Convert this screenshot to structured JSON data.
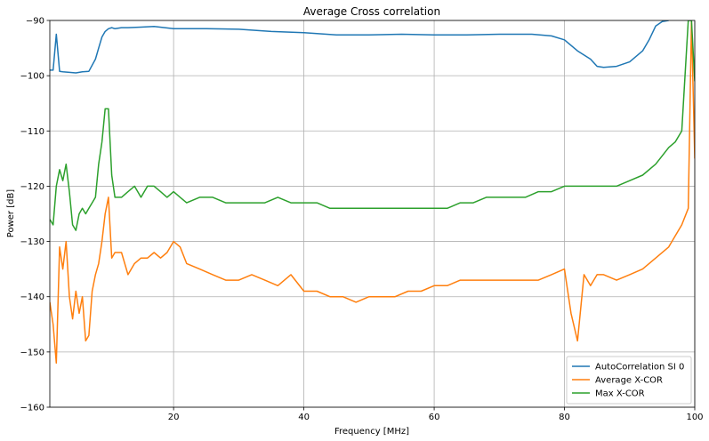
{
  "chart_data": {
    "type": "line",
    "title": "Average Cross correlation",
    "xlabel": "Frequency [MHz]",
    "ylabel": "Power [dB]",
    "xlim": [
      1,
      100
    ],
    "ylim": [
      -160,
      -90
    ],
    "xticks": [
      20,
      40,
      60,
      80,
      100
    ],
    "xtick_labels": [
      "20",
      "40",
      "60",
      "80",
      "100"
    ],
    "yticks": [
      -90,
      -100,
      -110,
      -120,
      -130,
      -140,
      -150,
      -160
    ],
    "ytick_labels": [
      "−90",
      "−100",
      "−110",
      "−120",
      "−130",
      "−140",
      "−150",
      "−160"
    ],
    "grid": true,
    "legend_position": "lower-right",
    "series": [
      {
        "name": "AutoCorrelation SI 0",
        "color": "#1f77b4",
        "x": [
          1,
          1.5,
          2,
          2.5,
          3,
          4,
          5,
          6,
          7,
          8,
          8.5,
          9,
          9.5,
          10,
          10.5,
          11,
          12,
          13,
          15,
          17,
          20,
          25,
          30,
          35,
          40,
          45,
          50,
          55,
          60,
          65,
          70,
          75,
          78,
          80,
          82,
          84,
          85,
          86,
          88,
          90,
          92,
          93,
          94,
          95,
          96
        ],
        "y": [
          -99,
          -99,
          -92.5,
          -99.2,
          -99.3,
          -99.4,
          -99.5,
          -99.3,
          -99.2,
          -97,
          -95,
          -93,
          -92,
          -91.5,
          -91.3,
          -91.5,
          -91.3,
          -91.3,
          -91.2,
          -91.1,
          -91.5,
          -91.5,
          -91.6,
          -92,
          -92.2,
          -92.6,
          -92.6,
          -92.5,
          -92.6,
          -92.6,
          -92.5,
          -92.5,
          -92.8,
          -93.5,
          -95.5,
          -97,
          -98.3,
          -98.5,
          -98.3,
          -97.5,
          -95.5,
          -93.5,
          -91,
          -90.2,
          -90
        ]
      },
      {
        "name": "Average X-COR",
        "color": "#ff7f0e",
        "x": [
          1,
          1.5,
          2,
          2.5,
          3,
          3.5,
          4,
          4.5,
          5,
          5.5,
          6,
          6.5,
          7,
          7.5,
          8,
          8.5,
          9,
          9.5,
          10,
          10.5,
          11,
          12,
          13,
          14,
          15,
          16,
          17,
          18,
          19,
          20,
          21,
          22,
          24,
          26,
          28,
          30,
          32,
          34,
          36,
          38,
          40,
          42,
          44,
          46,
          48,
          50,
          52,
          54,
          56,
          58,
          60,
          62,
          64,
          66,
          68,
          70,
          72,
          74,
          76,
          78,
          80,
          81,
          82,
          83,
          84,
          85,
          86,
          88,
          90,
          92,
          94,
          96,
          97,
          98,
          99,
          99.5,
          100
        ],
        "y": [
          -141,
          -145,
          -152,
          -131,
          -135,
          -130,
          -140,
          -144,
          -139,
          -143,
          -140,
          -148,
          -147,
          -139,
          -136,
          -134,
          -130,
          -125,
          -122,
          -133,
          -132,
          -132,
          -136,
          -134,
          -133,
          -133,
          -132,
          -133,
          -132,
          -130,
          -131,
          -134,
          -135,
          -136,
          -137,
          -137,
          -136,
          -137,
          -138,
          -136,
          -139,
          -139,
          -140,
          -140,
          -141,
          -140,
          -140,
          -140,
          -139,
          -139,
          -138,
          -138,
          -137,
          -137,
          -137,
          -137,
          -137,
          -137,
          -137,
          -136,
          -135,
          -143,
          -148,
          -136,
          -138,
          -136,
          -136,
          -137,
          -136,
          -135,
          -133,
          -131,
          -129,
          -127,
          -124,
          -90,
          -115
        ]
      },
      {
        "name": "Max X-COR",
        "color": "#2ca02c",
        "x": [
          1,
          1.5,
          2,
          2.5,
          3,
          3.5,
          4,
          4.5,
          5,
          5.5,
          6,
          6.5,
          7,
          7.5,
          8,
          8.5,
          9,
          9.5,
          10,
          10.5,
          11,
          12,
          13,
          14,
          15,
          16,
          17,
          18,
          19,
          20,
          21,
          22,
          24,
          26,
          28,
          30,
          32,
          34,
          36,
          38,
          40,
          42,
          44,
          46,
          48,
          50,
          52,
          54,
          56,
          58,
          60,
          62,
          64,
          66,
          68,
          70,
          72,
          74,
          76,
          78,
          80,
          82,
          84,
          86,
          88,
          90,
          92,
          94,
          96,
          97,
          98,
          99,
          99.5,
          100
        ],
        "y": [
          -126,
          -127,
          -120,
          -117,
          -119,
          -116,
          -121,
          -127,
          -128,
          -125,
          -124,
          -125,
          -124,
          -123,
          -122,
          -116,
          -112,
          -106,
          -106,
          -118,
          -122,
          -122,
          -121,
          -120,
          -122,
          -120,
          -120,
          -121,
          -122,
          -121,
          -122,
          -123,
          -122,
          -122,
          -123,
          -123,
          -123,
          -123,
          -122,
          -123,
          -123,
          -123,
          -124,
          -124,
          -124,
          -124,
          -124,
          -124,
          -124,
          -124,
          -124,
          -124,
          -123,
          -123,
          -122,
          -122,
          -122,
          -122,
          -121,
          -121,
          -120,
          -120,
          -120,
          -120,
          -120,
          -119,
          -118,
          -116,
          -113,
          -112,
          -110,
          -90,
          -90,
          -101
        ]
      }
    ]
  }
}
